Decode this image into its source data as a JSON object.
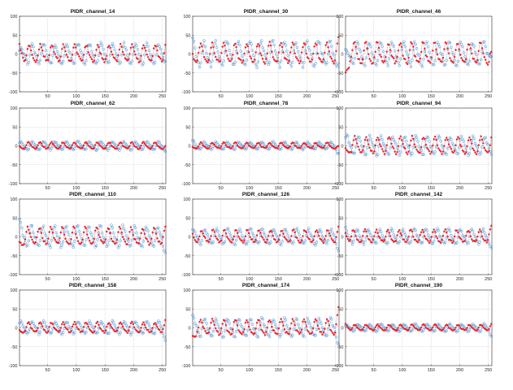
{
  "figure": {
    "background": "#ffffff"
  },
  "chart_data": [
    {
      "type": "scatter",
      "title": "PIDR_channel_14",
      "xlim": [
        1,
        256
      ],
      "ylim": [
        -100,
        100
      ],
      "xticks": [
        50,
        100,
        150,
        200,
        250
      ],
      "yticks": [
        -100,
        -50,
        0,
        50,
        100
      ],
      "grid": true,
      "series": [
        {
          "marker": "circle-open",
          "color": "#4a90d0",
          "period": 20,
          "amplitude": 25,
          "phase": 0.3,
          "start": -15,
          "end": 5
        },
        {
          "marker": "asterisk",
          "color": "#e8202a",
          "period": 20,
          "amplitude": 20,
          "phase": 2.2,
          "start": 18,
          "end": 12
        }
      ]
    },
    {
      "type": "scatter",
      "title": "PIDR_channel_30",
      "xlim": [
        1,
        256
      ],
      "ylim": [
        -100,
        100
      ],
      "xticks": [
        50,
        100,
        150,
        200,
        250
      ],
      "yticks": [
        -100,
        -50,
        0,
        50,
        100
      ],
      "grid": true,
      "series": [
        {
          "marker": "circle-open",
          "color": "#4a90d0",
          "period": 20,
          "amplitude": 30,
          "phase": 1.1,
          "start": 10,
          "end": -10
        },
        {
          "marker": "asterisk",
          "color": "#e8202a",
          "period": 20,
          "amplitude": 24,
          "phase": 3.0,
          "start": 5,
          "end": 15
        }
      ]
    },
    {
      "type": "scatter",
      "title": "PIDR_channel_46",
      "xlim": [
        1,
        256
      ],
      "ylim": [
        -100,
        100
      ],
      "xticks": [
        50,
        100,
        150,
        200,
        250
      ],
      "yticks": [
        -100,
        -50,
        0,
        50,
        100
      ],
      "grid": true,
      "series": [
        {
          "marker": "circle-open",
          "color": "#4a90d0",
          "period": 20,
          "amplitude": 28,
          "phase": 0.6,
          "start": -20,
          "end": 30
        },
        {
          "marker": "asterisk",
          "color": "#e8202a",
          "period": 20,
          "amplitude": 25,
          "phase": 2.6,
          "start": -45,
          "end": -20
        }
      ]
    },
    {
      "type": "scatter",
      "title": "PIDR_channel_62",
      "xlim": [
        1,
        256
      ],
      "ylim": [
        -100,
        100
      ],
      "xticks": [
        50,
        100,
        150,
        200,
        250
      ],
      "yticks": [
        -100,
        -50,
        0,
        50,
        100
      ],
      "grid": true,
      "series": [
        {
          "marker": "circle-open",
          "color": "#4a90d0",
          "period": 20,
          "amplitude": 10,
          "phase": 0.4,
          "start": 0,
          "end": -5
        },
        {
          "marker": "asterisk",
          "color": "#e8202a",
          "period": 20,
          "amplitude": 8,
          "phase": 2.4,
          "start": -3,
          "end": -8
        }
      ]
    },
    {
      "type": "scatter",
      "title": "PIDR_channel_78",
      "xlim": [
        1,
        256
      ],
      "ylim": [
        -100,
        100
      ],
      "xticks": [
        50,
        100,
        150,
        200,
        250
      ],
      "yticks": [
        -100,
        -50,
        0,
        50,
        100
      ],
      "grid": true,
      "series": [
        {
          "marker": "circle-open",
          "color": "#4a90d0",
          "period": 20,
          "amplitude": 9,
          "phase": 0.9,
          "start": 5,
          "end": -15
        },
        {
          "marker": "asterisk",
          "color": "#e8202a",
          "period": 20,
          "amplitude": 7,
          "phase": 2.9,
          "start": -2,
          "end": -10
        }
      ]
    },
    {
      "type": "scatter",
      "title": "PIDR_channel_94",
      "xlim": [
        1,
        256
      ],
      "ylim": [
        -100,
        100
      ],
      "xticks": [
        50,
        100,
        150,
        200,
        250
      ],
      "yticks": [
        -100,
        -50,
        0,
        50,
        100
      ],
      "grid": true,
      "series": [
        {
          "marker": "circle-open",
          "color": "#4a90d0",
          "period": 20,
          "amplitude": 22,
          "phase": 0.2,
          "start": 10,
          "end": 0
        },
        {
          "marker": "asterisk",
          "color": "#e8202a",
          "period": 20,
          "amplitude": 20,
          "phase": 2.3,
          "start": -10,
          "end": 5
        }
      ]
    },
    {
      "type": "scatter",
      "title": "PIDR_channel_110",
      "xlim": [
        1,
        256
      ],
      "ylim": [
        -100,
        100
      ],
      "xticks": [
        50,
        100,
        150,
        200,
        250
      ],
      "yticks": [
        -100,
        -50,
        0,
        50,
        100
      ],
      "grid": true,
      "series": [
        {
          "marker": "circle-open",
          "color": "#4a90d0",
          "period": 20,
          "amplitude": 25,
          "phase": 0.7,
          "start": 20,
          "end": -15
        },
        {
          "marker": "asterisk",
          "color": "#e8202a",
          "period": 20,
          "amplitude": 20,
          "phase": 2.8,
          "start": -10,
          "end": 5
        }
      ]
    },
    {
      "type": "scatter",
      "title": "PIDR_channel_126",
      "xlim": [
        1,
        256
      ],
      "ylim": [
        -100,
        100
      ],
      "xticks": [
        50,
        100,
        150,
        200,
        250
      ],
      "yticks": [
        -100,
        -50,
        0,
        50,
        100
      ],
      "grid": true,
      "series": [
        {
          "marker": "circle-open",
          "color": "#4a90d0",
          "period": 20,
          "amplitude": 18,
          "phase": 0.5,
          "start": 0,
          "end": -20
        },
        {
          "marker": "asterisk",
          "color": "#e8202a",
          "period": 20,
          "amplitude": 15,
          "phase": 2.5,
          "start": 5,
          "end": 15
        }
      ]
    },
    {
      "type": "scatter",
      "title": "PIDR_channel_142",
      "xlim": [
        1,
        256
      ],
      "ylim": [
        -100,
        100
      ],
      "xticks": [
        50,
        100,
        150,
        200,
        250
      ],
      "yticks": [
        -100,
        -50,
        0,
        50,
        100
      ],
      "grid": true,
      "series": [
        {
          "marker": "circle-open",
          "color": "#4a90d0",
          "period": 20,
          "amplitude": 18,
          "phase": 1.0,
          "start": 5,
          "end": -15
        },
        {
          "marker": "asterisk",
          "color": "#e8202a",
          "period": 20,
          "amplitude": 15,
          "phase": 3.1,
          "start": 15,
          "end": 10
        }
      ]
    },
    {
      "type": "scatter",
      "title": "PIDR_channel_158",
      "xlim": [
        1,
        256
      ],
      "ylim": [
        -100,
        100
      ],
      "xticks": [
        50,
        100,
        150,
        200,
        250
      ],
      "yticks": [
        -100,
        -50,
        0,
        50,
        100
      ],
      "grid": true,
      "series": [
        {
          "marker": "circle-open",
          "color": "#4a90d0",
          "period": 20,
          "amplitude": 15,
          "phase": 0.3,
          "start": 0,
          "end": -20
        },
        {
          "marker": "asterisk",
          "color": "#e8202a",
          "period": 20,
          "amplitude": 12,
          "phase": 2.4,
          "start": -8,
          "end": 10
        }
      ]
    },
    {
      "type": "scatter",
      "title": "PIDR_channel_174",
      "xlim": [
        1,
        256
      ],
      "ylim": [
        -100,
        100
      ],
      "xticks": [
        50,
        100,
        150,
        200,
        250
      ],
      "yticks": [
        -100,
        -50,
        0,
        50,
        100
      ],
      "grid": true,
      "series": [
        {
          "marker": "circle-open",
          "color": "#4a90d0",
          "period": 20,
          "amplitude": 22,
          "phase": 0.8,
          "start": 10,
          "end": -25
        },
        {
          "marker": "asterisk",
          "color": "#e8202a",
          "period": 20,
          "amplitude": 18,
          "phase": 2.9,
          "start": -20,
          "end": 35
        }
      ]
    },
    {
      "type": "scatter",
      "title": "PIDR_channel_190",
      "xlim": [
        1,
        256
      ],
      "ylim": [
        -100,
        100
      ],
      "xticks": [
        50,
        100,
        150,
        200,
        250
      ],
      "yticks": [
        -100,
        -50,
        0,
        50,
        100
      ],
      "grid": true,
      "series": [
        {
          "marker": "circle-open",
          "color": "#4a90d0",
          "period": 20,
          "amplitude": 9,
          "phase": 0.4,
          "start": -3,
          "end": -15
        },
        {
          "marker": "asterisk",
          "color": "#e8202a",
          "period": 20,
          "amplitude": 7,
          "phase": 2.4,
          "start": 10,
          "end": 5
        }
      ]
    }
  ]
}
